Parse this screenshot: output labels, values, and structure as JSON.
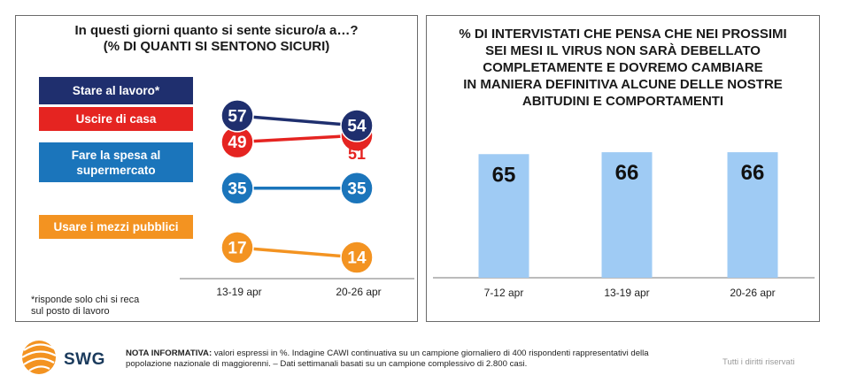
{
  "left": {
    "title_line1": "In questi giorni quanto si sente sicuro/a a…?",
    "title_line2": "(% DI QUANTI SI SENTONO SICURI)",
    "footnote_line1": "*risponde solo chi si reca",
    "footnote_line2": "sul posto di lavoro"
  },
  "right": {
    "title_lines": [
      "% DI INTERVISTATI CHE PENSA CHE NEI PROSSIMI",
      "SEI MESI IL VIRUS NON SARÀ DEBELLATO",
      "COMPLETAMENTE E DOVREMO CAMBIARE",
      "IN MANIERA DEFINITIVA ALCUNE DELLE NOSTRE",
      "ABITUDINI E COMPORTAMENTI"
    ]
  },
  "footer": {
    "logo": "SWG",
    "note_bold": "NOTA INFORMATIVA:",
    "note_text": " valori espressi in %. Indagine CAWI continuativa su un campione giornaliero di 400 rispondenti rappresentativi della popolazione nazionale di maggiorenni. – Dati settimanali basati su un campione complessivo di 2.800 casi.",
    "rights": "Tutti i diritti riservati"
  },
  "chart_data": [
    {
      "type": "line",
      "categories": [
        "13-19 apr",
        "20-26 apr"
      ],
      "series": [
        {
          "name": "Stare al lavoro*",
          "values": [
            57,
            54
          ],
          "color": "#1f2f6e"
        },
        {
          "name": "Uscire di casa",
          "values": [
            49,
            51
          ],
          "color": "#e52421"
        },
        {
          "name": "Fare la spesa al supermercato",
          "values": [
            35,
            35
          ],
          "color": "#1b75bb"
        },
        {
          "name": "Usare i mezzi pubblici",
          "values": [
            17,
            14
          ],
          "color": "#f39321"
        }
      ]
    },
    {
      "type": "bar",
      "categories": [
        "7-12 apr",
        "13-19 apr",
        "20-26 apr"
      ],
      "values": [
        65,
        66,
        66
      ],
      "color": "#9fcbf4"
    }
  ]
}
